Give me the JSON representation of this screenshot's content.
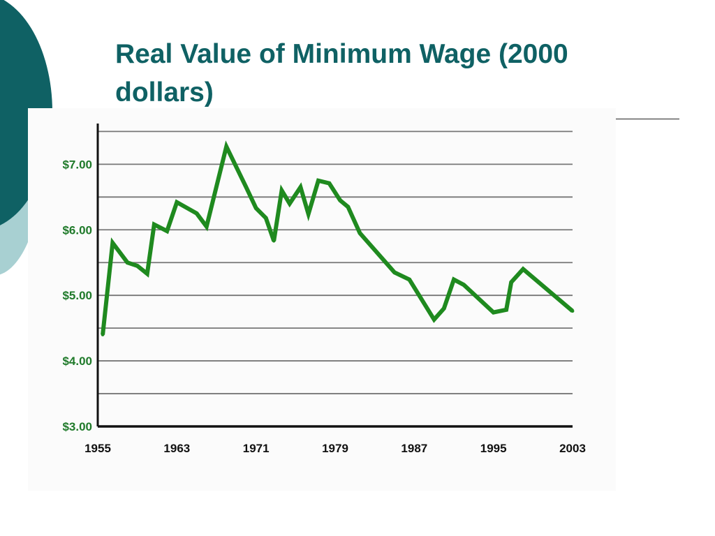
{
  "slide": {
    "title": "Real Value of Minimum Wage (2000 dollars)",
    "accent_dark": "#0f6164",
    "accent_light": "#a8d0d2"
  },
  "chart_data": {
    "type": "line",
    "title": "",
    "xlabel": "",
    "ylabel": "",
    "xlim": [
      1955,
      2003
    ],
    "ylim": [
      3,
      7.6
    ],
    "grid": true,
    "y_ticks": [
      {
        "value": 7,
        "label": "$7.00"
      },
      {
        "value": 6,
        "label": "$6.00"
      },
      {
        "value": 5,
        "label": "$5.00"
      },
      {
        "value": 4,
        "label": "$4.00"
      },
      {
        "value": 3,
        "label": "$3.00"
      }
    ],
    "x_ticks": [
      {
        "value": 1955,
        "label": "1955"
      },
      {
        "value": 1963,
        "label": "1963"
      },
      {
        "value": 1971,
        "label": "1971"
      },
      {
        "value": 1979,
        "label": "1979"
      },
      {
        "value": 1987,
        "label": "1987"
      },
      {
        "value": 1995,
        "label": "1995"
      },
      {
        "value": 2003,
        "label": "2003"
      }
    ],
    "line_color": "#1f8a1f",
    "series": [
      {
        "x": [
          1955.5,
          1956.5,
          1958,
          1959,
          1960,
          1960.7,
          1962,
          1963,
          1965,
          1966,
          1968,
          1970,
          1971,
          1972,
          1972.8,
          1973.6,
          1974.4,
          1975.5,
          1976.3,
          1977.3,
          1978.4,
          1979.5,
          1980.3,
          1981.5,
          1985,
          1986.5,
          1989,
          1990,
          1991,
          1992,
          1995,
          1996.3,
          1996.8,
          1998,
          2003
        ],
        "y": [
          4.4,
          5.8,
          5.5,
          5.45,
          5.33,
          6.08,
          5.98,
          6.42,
          6.25,
          6.05,
          7.27,
          6.65,
          6.33,
          6.18,
          5.83,
          6.6,
          6.4,
          6.65,
          6.24,
          6.75,
          6.71,
          6.45,
          6.35,
          5.95,
          5.35,
          5.24,
          4.63,
          4.8,
          5.24,
          5.16,
          4.74,
          4.78,
          5.2,
          5.4,
          4.76
        ]
      }
    ]
  }
}
